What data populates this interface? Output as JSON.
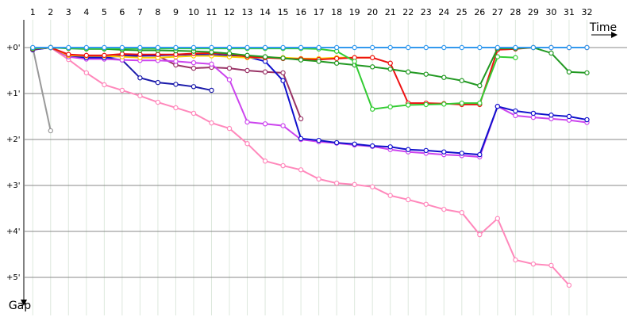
{
  "chart_data": {
    "type": "line",
    "x_label": "Time",
    "y_label": "Gap",
    "x": [
      1,
      2,
      3,
      4,
      5,
      6,
      7,
      8,
      9,
      10,
      11,
      12,
      13,
      14,
      15,
      16,
      17,
      18,
      19,
      20,
      21,
      22,
      23,
      24,
      25,
      26,
      27,
      28,
      29,
      30,
      31,
      32
    ],
    "xlim": [
      0.5,
      33.8
    ],
    "xticks": [
      1,
      2,
      3,
      4,
      5,
      6,
      7,
      8,
      9,
      10,
      11,
      12,
      13,
      14,
      15,
      16,
      17,
      18,
      19,
      20,
      21,
      22,
      23,
      24,
      25,
      26,
      27,
      28,
      29,
      30,
      31,
      32
    ],
    "ylim": [
      -0.5,
      5.75
    ],
    "yticks": [
      {
        "value": 0,
        "label": "+0'"
      },
      {
        "value": 1,
        "label": "+1'"
      },
      {
        "value": 2,
        "label": "+2'"
      },
      {
        "value": 3,
        "label": "+3'"
      },
      {
        "value": 4,
        "label": "+4'"
      },
      {
        "value": 5,
        "label": "+5'"
      }
    ],
    "grid": true,
    "series": [
      {
        "color": "#999999",
        "values": [
          0,
          1.81,
          null,
          null,
          null,
          null,
          null,
          null,
          null,
          null,
          null,
          null,
          null,
          null,
          null,
          null,
          null,
          null,
          null,
          null,
          null,
          null,
          null,
          null,
          null,
          null,
          null,
          null,
          null,
          null,
          null,
          null
        ]
      },
      {
        "color": "#ff88bb",
        "values": [
          0.05,
          0,
          0.26,
          0.55,
          0.81,
          0.93,
          1.05,
          1.19,
          1.31,
          1.43,
          1.64,
          1.76,
          2.09,
          2.47,
          2.57,
          2.66,
          2.86,
          2.95,
          2.98,
          3.03,
          3.22,
          3.31,
          3.41,
          3.52,
          3.59,
          4.07,
          3.72,
          4.62,
          4.71,
          4.74,
          5.17,
          null
        ]
      },
      {
        "color": "#993366",
        "values": [
          0.03,
          0,
          0.2,
          0.22,
          0.2,
          0.17,
          0.17,
          0.18,
          0.38,
          0.45,
          0.43,
          0.45,
          0.5,
          0.53,
          0.55,
          1.55,
          null,
          null,
          null,
          null,
          null,
          null,
          null,
          null,
          null,
          null,
          null,
          null,
          null,
          null,
          null,
          null
        ]
      },
      {
        "color": "#1a1aaa",
        "values": [
          0.04,
          0,
          0.17,
          0.22,
          0.22,
          0.27,
          0.66,
          0.76,
          0.8,
          0.85,
          0.93,
          null,
          null,
          null,
          null,
          null,
          null,
          null,
          null,
          null,
          null,
          null,
          null,
          null,
          null,
          null,
          null,
          null,
          null,
          null,
          null,
          null
        ]
      },
      {
        "color": "#cc44ee",
        "values": [
          0.04,
          0,
          0.2,
          0.25,
          0.25,
          0.27,
          0.28,
          0.28,
          0.3,
          0.33,
          0.36,
          0.7,
          1.62,
          1.66,
          1.7,
          2.0,
          2.05,
          2.08,
          2.12,
          2.15,
          2.22,
          2.27,
          2.3,
          2.33,
          2.35,
          2.38,
          1.28,
          1.48,
          1.52,
          1.55,
          1.58,
          1.63
        ]
      },
      {
        "color": "#1111cc",
        "values": [
          0.05,
          0,
          0.17,
          0.22,
          0.22,
          0.18,
          0.18,
          0.17,
          0.16,
          0.15,
          0.16,
          0.17,
          0.2,
          0.3,
          0.72,
          1.98,
          2.02,
          2.07,
          2.1,
          2.14,
          2.16,
          2.22,
          2.24,
          2.27,
          2.3,
          2.33,
          1.28,
          1.38,
          1.43,
          1.47,
          1.5,
          1.57
        ]
      },
      {
        "color": "#ffcc00",
        "values": [
          0.03,
          0,
          0.17,
          0.18,
          0.18,
          0.2,
          0.22,
          0.22,
          0.2,
          0.18,
          0.18,
          0.2,
          0.22,
          0.22,
          0.22,
          0.24,
          0.24,
          0.22,
          0.22,
          0.22,
          null,
          null,
          null,
          null,
          null,
          null,
          null,
          null,
          null,
          null,
          null,
          null
        ]
      },
      {
        "color": "#ee1111",
        "values": [
          0.03,
          0,
          0.15,
          0.17,
          0.17,
          0.14,
          0.15,
          0.15,
          0.15,
          0.13,
          0.12,
          0.14,
          0.2,
          0.22,
          0.24,
          0.25,
          0.26,
          0.24,
          0.22,
          0.22,
          0.34,
          1.21,
          1.21,
          1.22,
          1.24,
          1.24,
          0.05,
          0.03,
          0,
          0,
          0,
          0
        ]
      },
      {
        "color": "#229922",
        "values": [
          0.02,
          0,
          0.02,
          0.03,
          0.03,
          0.05,
          0.06,
          0.06,
          0.07,
          0.08,
          0.1,
          0.13,
          0.17,
          0.2,
          0.23,
          0.27,
          0.3,
          0.34,
          0.38,
          0.42,
          0.47,
          0.53,
          0.58,
          0.65,
          0.72,
          0.83,
          0.02,
          0.02,
          0,
          0.12,
          0.53,
          0.55
        ]
      },
      {
        "color": "#33cc33",
        "values": [
          0.02,
          0,
          0.01,
          0.02,
          0.02,
          0.02,
          0.02,
          0.02,
          0.02,
          0.02,
          0.02,
          0.02,
          0.02,
          0.02,
          0.02,
          0.02,
          0.03,
          0.08,
          0.3,
          1.34,
          1.29,
          1.25,
          1.24,
          1.23,
          1.21,
          1.21,
          0.2,
          0.22,
          null,
          null,
          null,
          null
        ]
      },
      {
        "color": "#3399ee",
        "values": [
          0,
          0,
          0,
          0,
          0,
          0,
          0,
          0,
          0,
          0,
          0,
          0,
          0,
          0,
          0,
          0,
          0,
          0,
          0,
          0,
          0,
          0,
          0,
          0,
          0,
          0,
          0,
          0,
          0,
          0,
          0,
          0
        ]
      }
    ]
  }
}
